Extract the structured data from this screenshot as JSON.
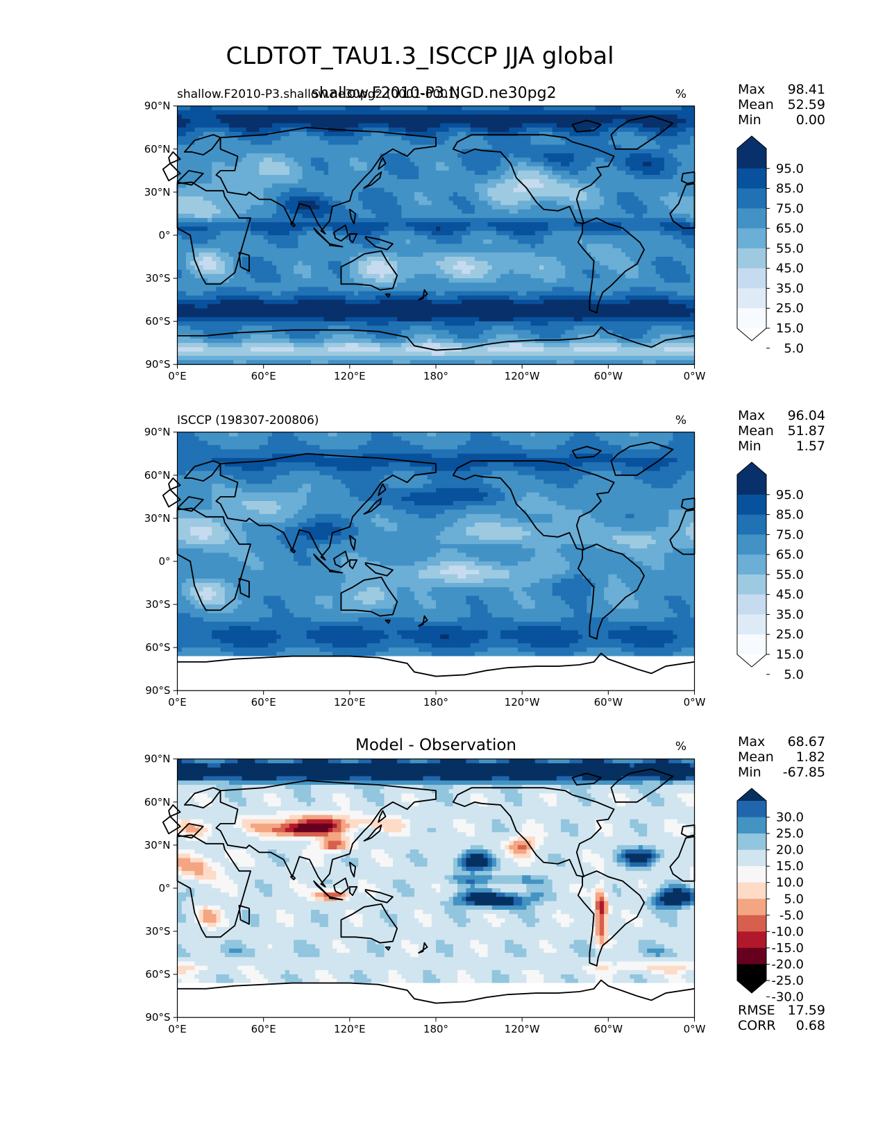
{
  "figure": {
    "title": "CLDTOT_TAU1.3_ISCCP JJA global",
    "overlay_title": "shallow.F2010-P3.NGD.ne30pg2"
  },
  "colors": {
    "blues": [
      "#f7fbff",
      "#deebf7",
      "#c6dbef",
      "#9ecae1",
      "#6baed6",
      "#4292c6",
      "#2171b5",
      "#08519c",
      "#08306b"
    ],
    "diff": [
      "#67001f",
      "#b2182b",
      "#d6604d",
      "#f4a582",
      "#fddbc7",
      "#f7f7f7",
      "#d1e5f0",
      "#92c5de",
      "#4393c3",
      "#2166ac",
      "#053061"
    ],
    "land_outline": "#000000",
    "missing": "#ffffff"
  },
  "chart_data": [
    {
      "type": "heatmap",
      "title": "shallow.F2010-P3.shallow.ne30pg2 (0001-0001)",
      "units": "%",
      "stats": {
        "max_label": "Max",
        "max": "98.41",
        "mean_label": "Mean",
        "mean": "52.59",
        "min_label": "Min",
        "min": "0.00"
      },
      "x_ticks": [
        "0°E",
        "60°E",
        "120°E",
        "180°",
        "120°W",
        "60°W",
        "0°W"
      ],
      "x_tick_values": [
        0,
        60,
        120,
        180,
        240,
        300,
        360
      ],
      "y_ticks": [
        "90°N",
        "60°N",
        "30°N",
        "0°",
        "30°S",
        "60°S",
        "90°S"
      ],
      "y_tick_values": [
        90,
        60,
        30,
        0,
        -30,
        -60,
        -90
      ],
      "colorbar_levels": [
        0,
        5,
        15,
        25,
        35,
        45,
        55,
        65,
        75,
        85,
        95,
        100
      ],
      "colorbar_labels": [
        "95.0",
        "85.0",
        "75.0",
        "65.0",
        "55.0",
        "45.0",
        "35.0",
        "25.0",
        "15.0",
        "5.0"
      ],
      "field": "model",
      "missing_south_of": -90
    },
    {
      "type": "heatmap",
      "title": "ISCCP (198307-200806)",
      "units": "%",
      "stats": {
        "max_label": "Max",
        "max": "96.04",
        "mean_label": "Mean",
        "mean": "51.87",
        "min_label": "Min",
        "min": "1.57"
      },
      "x_ticks": [
        "0°E",
        "60°E",
        "120°E",
        "180°",
        "120°W",
        "60°W",
        "0°W"
      ],
      "x_tick_values": [
        0,
        60,
        120,
        180,
        240,
        300,
        360
      ],
      "y_ticks": [
        "90°N",
        "60°N",
        "30°N",
        "0°",
        "30°S",
        "60°S",
        "90°S"
      ],
      "y_tick_values": [
        90,
        60,
        30,
        0,
        -30,
        -60,
        -90
      ],
      "colorbar_levels": [
        0,
        5,
        15,
        25,
        35,
        45,
        55,
        65,
        75,
        85,
        95,
        100
      ],
      "colorbar_labels": [
        "95.0",
        "85.0",
        "75.0",
        "65.0",
        "55.0",
        "45.0",
        "35.0",
        "25.0",
        "15.0",
        "5.0"
      ],
      "field": "obs",
      "missing_south_of": -67
    },
    {
      "type": "heatmap",
      "title": "Model - Observation",
      "units": "%",
      "stats": {
        "max_label": "Max",
        "max": "68.67",
        "mean_label": "Mean",
        "mean": "1.82",
        "min_label": "Min",
        "min": "-67.85"
      },
      "extra_stats": {
        "rmse_label": "RMSE",
        "rmse": "17.59",
        "corr_label": "CORR",
        "corr": "0.68"
      },
      "x_ticks": [
        "0°E",
        "60°E",
        "120°E",
        "180°",
        "120°W",
        "60°W",
        "0°W"
      ],
      "x_tick_values": [
        0,
        60,
        120,
        180,
        240,
        300,
        360
      ],
      "y_ticks": [
        "90°N",
        "60°N",
        "30°N",
        "0°",
        "30°S",
        "60°S",
        "90°S"
      ],
      "y_tick_values": [
        90,
        60,
        30,
        0,
        -30,
        -60,
        -90
      ],
      "colorbar_levels": [
        -35,
        -30,
        -25,
        -20,
        -15,
        -10,
        -5,
        5,
        10,
        15,
        20,
        25,
        30,
        35
      ],
      "colorbar_labels": [
        "30.0",
        "25.0",
        "20.0",
        "15.0",
        "10.0",
        "5.0",
        "-5.0",
        "-10.0",
        "-15.0",
        "-20.0",
        "-25.0",
        "-30.0"
      ],
      "field": "diff",
      "missing_south_of": -67
    }
  ]
}
